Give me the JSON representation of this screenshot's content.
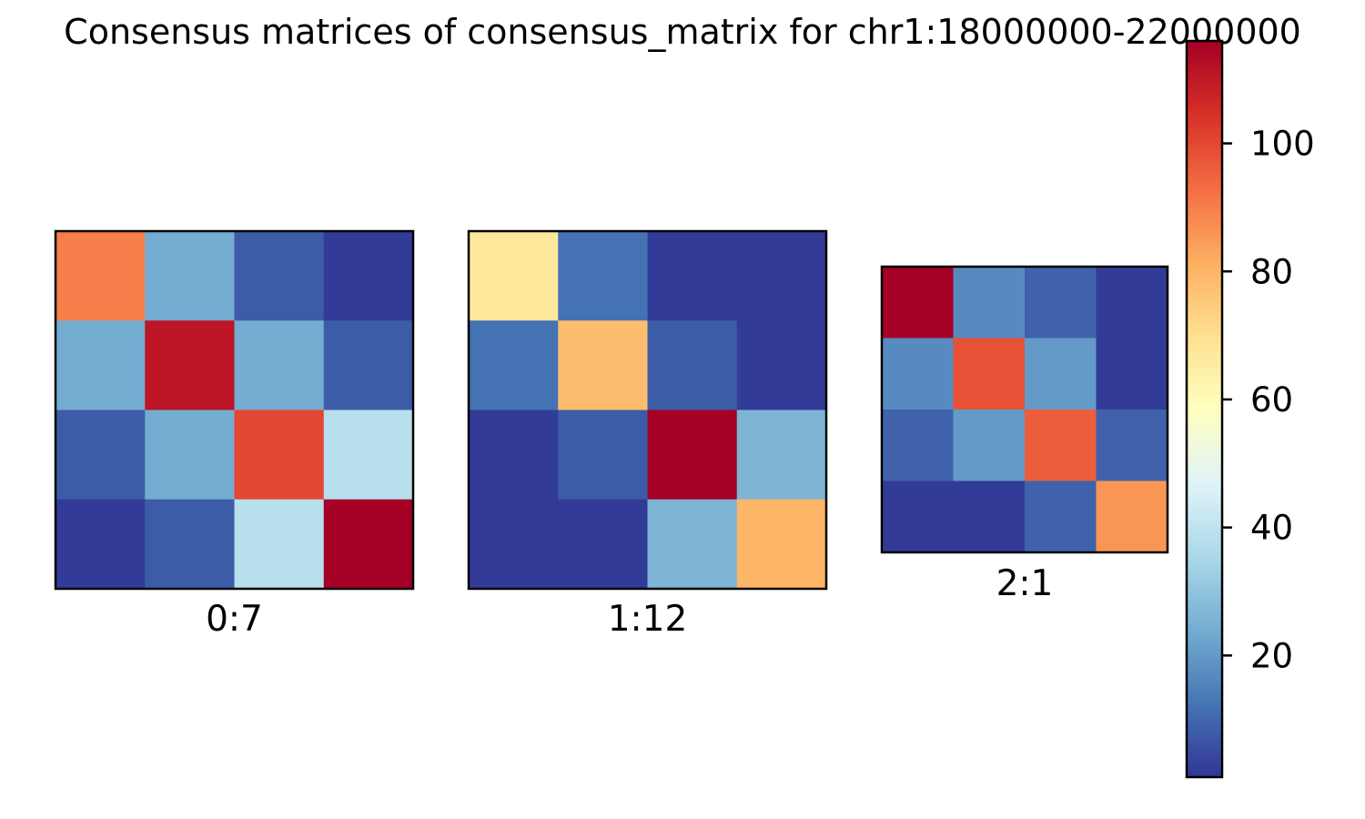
{
  "chart_data": {
    "type": "heatmap",
    "title": "Consensus matrices of consensus_matrix for chr1:18000000-22000000",
    "colormap": "RdYlBu_r",
    "color_range": [
      1,
      116
    ],
    "colorbar": {
      "ticks": [
        20,
        40,
        60,
        80,
        100
      ],
      "tick_labels": [
        "20",
        "40",
        "60",
        "80",
        "100"
      ],
      "position": "right"
    },
    "matrices": [
      {
        "label": "0:7",
        "values": [
          [
            90,
            24,
            8,
            2
          ],
          [
            24,
            111,
            24,
            8
          ],
          [
            8,
            24,
            100,
            38
          ],
          [
            2,
            8,
            38,
            116
          ]
        ]
      },
      {
        "label": "1:12",
        "values": [
          [
            67,
            12,
            2,
            2
          ],
          [
            12,
            78,
            8,
            2
          ],
          [
            2,
            8,
            116,
            26
          ],
          [
            2,
            2,
            26,
            80
          ]
        ]
      },
      {
        "label": "2:1",
        "values": [
          [
            116,
            17,
            9,
            2
          ],
          [
            17,
            98,
            20,
            2
          ],
          [
            9,
            20,
            96,
            9
          ],
          [
            2,
            2,
            9,
            86
          ]
        ]
      }
    ]
  }
}
